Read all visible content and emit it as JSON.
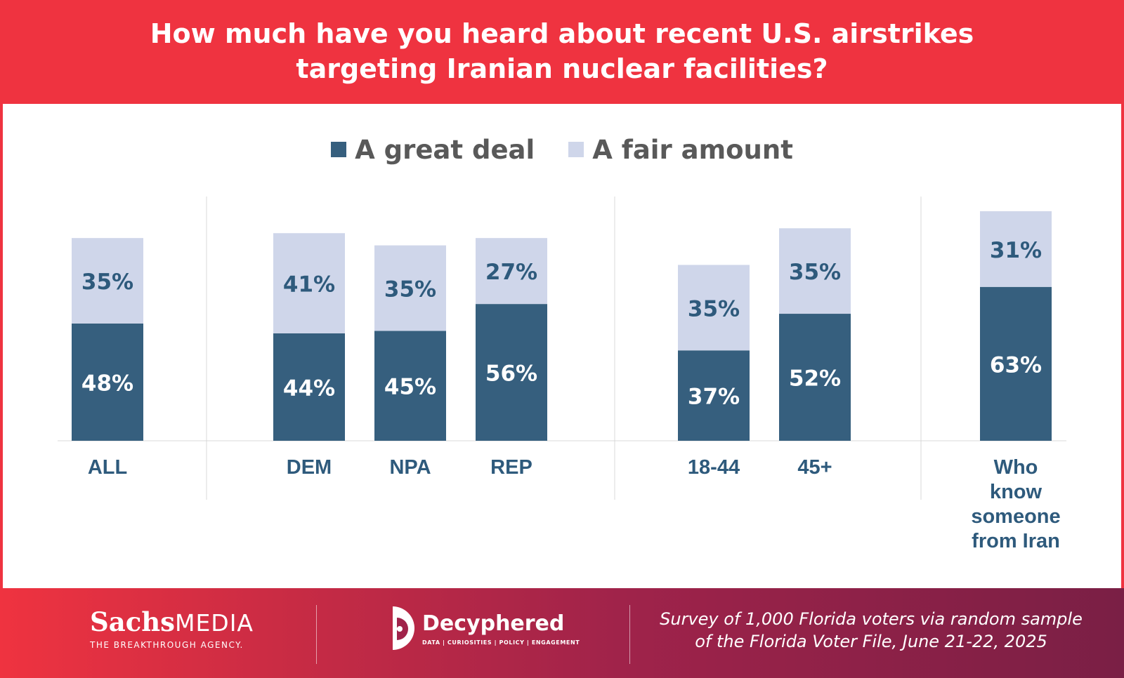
{
  "header": {
    "title_line1": "How much have you heard about recent U.S. airstrikes",
    "title_line2": "targeting Iranian nuclear facilities?"
  },
  "colors": {
    "great_deal": "#365f7e",
    "fair_amount": "#cfd6ea",
    "label_dark": "#2e5a7c"
  },
  "chart_data": {
    "type": "bar",
    "stacked": true,
    "categories": [
      "ALL",
      "DEM",
      "NPA",
      "REP",
      "18-44",
      "45+",
      "Who know someone from Iran"
    ],
    "category_label_lines": [
      [
        "ALL"
      ],
      [
        "DEM"
      ],
      [
        "NPA"
      ],
      [
        "REP"
      ],
      [
        "18-44"
      ],
      [
        "45+"
      ],
      [
        "Who",
        "know",
        "someone",
        "from Iran"
      ]
    ],
    "groups": [
      [
        "ALL"
      ],
      [
        "DEM",
        "NPA",
        "REP"
      ],
      [
        "18-44",
        "45+"
      ],
      [
        "Who know someone from Iran"
      ]
    ],
    "series": [
      {
        "name": "A great deal",
        "values": [
          48,
          44,
          45,
          56,
          37,
          52,
          63
        ]
      },
      {
        "name": "A fair amount",
        "values": [
          35,
          41,
          35,
          27,
          35,
          35,
          31
        ]
      }
    ],
    "value_suffix": "%",
    "title": "How much have you heard about recent U.S. airstrikes targeting Iranian nuclear facilities?",
    "legend_position": "top",
    "ylim": [
      0,
      100
    ]
  },
  "footer": {
    "sachs_bold": "Sachs",
    "sachs_rest": "MEDIA",
    "sachs_tagline": "THE BREAKTHROUGH AGENCY.",
    "decyphered_name": "Decyphered",
    "decyphered_tagline": "DATA | CURIOSITIES | POLICY | ENGAGEMENT",
    "note_line1": "Survey of 1,000 Florida voters via random sample",
    "note_line2": "of the Florida Voter File, June 21-22, 2025"
  }
}
